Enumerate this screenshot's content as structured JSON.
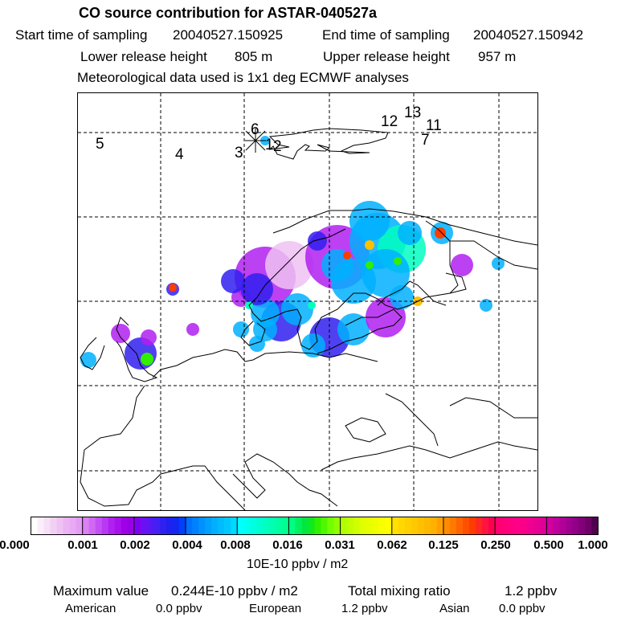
{
  "header": {
    "title": "CO  source contribution for ASTAR-040527a",
    "start_label": "Start time of sampling",
    "start_value": "20040527.150925",
    "end_label": "End time of sampling",
    "end_value": "20040527.150942",
    "lower_label": "Lower release height",
    "lower_value": "805 m",
    "upper_label": "Upper release height",
    "upper_value": "957 m",
    "met_line": "Meteorological data used is 1x1 deg ECMWF analyses"
  },
  "map": {
    "release_markers": [
      "1",
      "2",
      "3",
      "4",
      "5",
      "6",
      "7",
      "11",
      "12",
      "13"
    ]
  },
  "colorbar": {
    "ticks": [
      "0.000",
      "0.001",
      "0.002",
      "0.004",
      "0.008",
      "0.016",
      "0.031",
      "0.062",
      "0.125",
      "0.250",
      "0.500",
      "1.000"
    ],
    "unit": "10E-10 ppbv / m2",
    "segment_colors": [
      [
        "#ffffff",
        "#fbeefb",
        "#f6e0f6",
        "#f2d0f4",
        "#eec2f2",
        "#eab4f2",
        "#e8aaf2",
        "#e49cf4"
      ],
      [
        "#dc80f4",
        "#d068f4",
        "#c450f4",
        "#b838f4",
        "#b020f0",
        "#a810ec",
        "#a000e8",
        "#9800e4"
      ],
      [
        "#8000f0",
        "#6c10f4",
        "#5818f4",
        "#4420f4",
        "#3020f0",
        "#2020f0",
        "#1028f0",
        "#0040f8"
      ],
      [
        "#0070ff",
        "#0080ff",
        "#0090ff",
        "#00a0ff",
        "#00b0ff",
        "#00bcff",
        "#00c8ff",
        "#00d8ff"
      ],
      [
        "#00ffff",
        "#00fff0",
        "#00ffe0",
        "#00ffd0",
        "#00ffc0",
        "#00ffb0",
        "#00ffa0",
        "#00ff90"
      ],
      [
        "#00ff80",
        "#00f060",
        "#00e840",
        "#10e820",
        "#30f000",
        "#50f800",
        "#70ff00",
        "#90ff00"
      ],
      [
        "#b0ff00",
        "#c0ff00",
        "#d0ff00",
        "#e0ff00",
        "#e8ff00",
        "#f0ff00",
        "#f8ff00",
        "#ffff00"
      ],
      [
        "#ffe000",
        "#ffd800",
        "#ffd000",
        "#ffc800",
        "#ffc000",
        "#ffb800",
        "#ffb000",
        "#ffa000"
      ],
      [
        "#ff8c00",
        "#ff7800",
        "#ff6400",
        "#ff5000",
        "#ff3c00",
        "#ff2820",
        "#ff1440",
        "#ff0050"
      ],
      [
        "#ff0070",
        "#ff0078",
        "#ff0080",
        "#ff0088",
        "#f80088",
        "#f00090",
        "#e80090",
        "#e00098"
      ],
      [
        "#d000a0",
        "#c0009c",
        "#b00098",
        "#a00090",
        "#900088",
        "#800078",
        "#700068",
        "#500050"
      ]
    ]
  },
  "summary": {
    "max_label": "Maximum value",
    "max_value": "0.244E-10 ppbv / m2",
    "total_label": "Total mixing ratio",
    "total_value": "1.2 ppbv",
    "american_label": "American",
    "american_value": "0.0 ppbv",
    "european_label": "European",
    "european_value": "1.2 ppbv",
    "asian_label": "Asian",
    "asian_value": "0.0 ppbv"
  }
}
